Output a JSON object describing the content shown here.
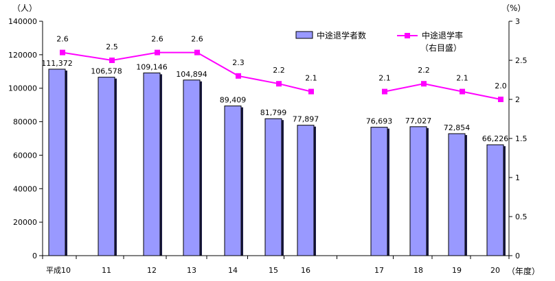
{
  "chart_data": {
    "type": "bar",
    "categories": [
      "平成10",
      "11",
      "12",
      "13",
      "14",
      "15",
      "16",
      "17",
      "18",
      "19",
      "20"
    ],
    "series": [
      {
        "name": "中途退学者数",
        "type": "bar",
        "axis": "left",
        "values": [
          111372,
          106578,
          109146,
          104894,
          89409,
          81799,
          77897,
          76693,
          77027,
          72854,
          66226
        ],
        "labels": [
          "111,372",
          "106,578",
          "109,146",
          "104,894",
          "89,409",
          "81,799",
          "77,897",
          "76,693",
          "77,027",
          "72,854",
          "66,226"
        ],
        "color": "#9999ff"
      },
      {
        "name": "中途退学率",
        "name_line2": "（右目盛）",
        "type": "line",
        "axis": "right",
        "values": [
          2.6,
          2.5,
          2.6,
          2.6,
          2.3,
          2.2,
          2.1,
          2.1,
          2.2,
          2.1,
          2.0
        ],
        "labels": [
          "2.6",
          "2.5",
          "2.6",
          "2.6",
          "2.3",
          "2.2",
          "2.1",
          "2.1",
          "2.2",
          "2.1",
          "2.0"
        ],
        "segments": [
          [
            0,
            6
          ],
          [
            7,
            10
          ]
        ],
        "color": "#ff00ff"
      }
    ],
    "y_left": {
      "unit": "（人）",
      "ylim": [
        0,
        140000
      ],
      "ticks": [
        "0",
        "20000",
        "40000",
        "60000",
        "80000",
        "100000",
        "120000",
        "140000"
      ]
    },
    "y_right": {
      "unit": "（%）",
      "ylim": [
        0,
        3
      ],
      "ticks": [
        "0",
        "0.5",
        "1",
        "1.5",
        "2",
        "2.5",
        "3"
      ]
    },
    "x_unit": "（年度）",
    "legend_position": "top-right",
    "grid": false
  }
}
